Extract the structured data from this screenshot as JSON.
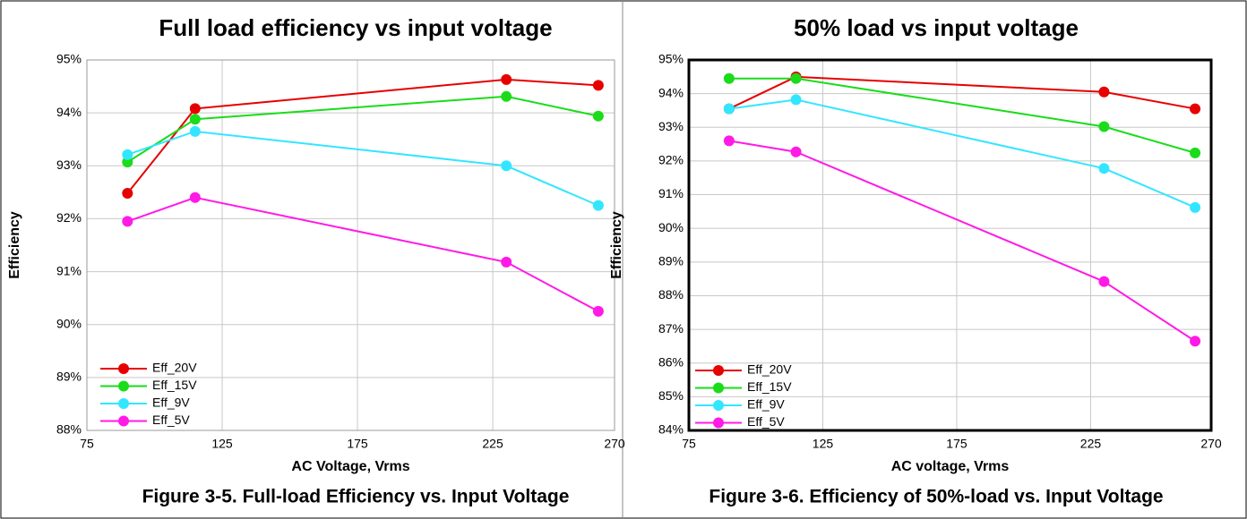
{
  "chart_data": [
    {
      "type": "line",
      "title": "Full load efficiency vs input voltage",
      "caption": "Figure 3-5. Full-load Efficiency vs. Input Voltage",
      "xlabel": "AC Voltage, Vrms",
      "ylabel": "Efficiency",
      "x": [
        90,
        115,
        230,
        264
      ],
      "xlim": [
        75,
        270
      ],
      "xticks": [
        75,
        125,
        175,
        225,
        270
      ],
      "ylim": [
        88,
        95
      ],
      "yticks": [
        {
          "value": 88,
          "label": "88%"
        },
        {
          "value": 89,
          "label": "89%"
        },
        {
          "value": 90,
          "label": "90%"
        },
        {
          "value": 91,
          "label": "91%"
        },
        {
          "value": 92,
          "label": "92%"
        },
        {
          "value": 93,
          "label": "93%"
        },
        {
          "value": 94,
          "label": "94%"
        },
        {
          "value": 95,
          "label": "95%"
        }
      ],
      "grid": true,
      "legend": "lower left",
      "series": [
        {
          "name": "Eff_20V",
          "color": "#e60000",
          "values": [
            92.48,
            94.08,
            94.63,
            94.52
          ]
        },
        {
          "name": "Eff_15V",
          "color": "#1adc1a",
          "values": [
            93.07,
            93.88,
            94.31,
            93.94
          ]
        },
        {
          "name": "Eff_9V",
          "color": "#33e6ff",
          "values": [
            93.21,
            93.65,
            93.0,
            92.25
          ]
        },
        {
          "name": "Eff_5V",
          "color": "#ff1ae6",
          "values": [
            91.95,
            92.4,
            91.18,
            90.25
          ]
        }
      ]
    },
    {
      "type": "line",
      "title": "50% load vs input voltage",
      "caption": "Figure 3-6. Efficiency of 50%-load vs. Input Voltage",
      "xlabel": "AC voltage, Vrms",
      "ylabel": "Efficiency",
      "x": [
        90,
        115,
        230,
        264
      ],
      "xlim": [
        75,
        270
      ],
      "xticks": [
        75,
        125,
        175,
        225,
        270
      ],
      "ylim": [
        84,
        95
      ],
      "yticks": [
        {
          "value": 84,
          "label": "84%"
        },
        {
          "value": 85,
          "label": "85%"
        },
        {
          "value": 86,
          "label": "86%"
        },
        {
          "value": 87,
          "label": "87%"
        },
        {
          "value": 88,
          "label": "88%"
        },
        {
          "value": 89,
          "label": "89%"
        },
        {
          "value": 90,
          "label": "90%"
        },
        {
          "value": 91,
          "label": "91%"
        },
        {
          "value": 92,
          "label": "92%"
        },
        {
          "value": 93,
          "label": "93%"
        },
        {
          "value": 94,
          "label": "94%"
        },
        {
          "value": 95,
          "label": "95%"
        }
      ],
      "grid": true,
      "legend": "lower left",
      "series": [
        {
          "name": "Eff_20V",
          "color": "#e60000",
          "values": [
            93.55,
            94.5,
            94.05,
            93.55
          ]
        },
        {
          "name": "Eff_15V",
          "color": "#1adc1a",
          "values": [
            94.45,
            94.45,
            93.02,
            92.24
          ]
        },
        {
          "name": "Eff_9V",
          "color": "#33e6ff",
          "values": [
            93.55,
            93.82,
            91.78,
            90.62
          ]
        },
        {
          "name": "Eff_5V",
          "color": "#ff1ae6",
          "values": [
            92.6,
            92.27,
            88.42,
            86.65
          ]
        }
      ]
    }
  ]
}
